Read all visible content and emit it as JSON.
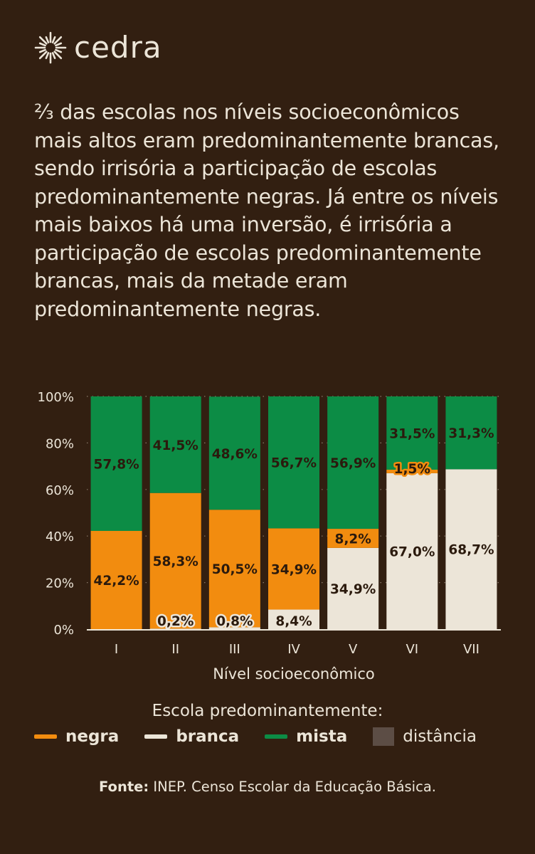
{
  "brand": {
    "name": "cedra",
    "icon": "sun-burst-icon"
  },
  "headline": "⅔ das escolas nos níveis socioeconômicos mais altos eram predominantemente brancas, sendo irrisória a participação de escolas predominantemente negras. Já entre os níveis mais baixos há uma inversão, é irrisória a participação de escolas predominantemente brancas, mais da metade eram predominantemente negras.",
  "chart_data": {
    "type": "bar",
    "stacked": true,
    "categories": [
      "I",
      "II",
      "III",
      "IV",
      "V",
      "VI",
      "VII"
    ],
    "xlabel": "Nível socioeconômico",
    "ylim": [
      0,
      100
    ],
    "yticks": [
      "0%",
      "20%",
      "40%",
      "60%",
      "80%",
      "100%"
    ],
    "series": [
      {
        "name": "branca",
        "values": [
          0.0,
          0.2,
          0.8,
          8.4,
          34.9,
          67.0,
          68.7
        ],
        "labels": [
          "",
          "0,2%",
          "0,8%",
          "8,4%",
          "34,9%",
          "67,0%",
          "68,7%"
        ]
      },
      {
        "name": "negra",
        "values": [
          42.2,
          58.3,
          50.5,
          34.9,
          8.2,
          1.5,
          0.0
        ],
        "labels": [
          "42,2%",
          "58,3%",
          "50,5%",
          "34,9%",
          "8,2%",
          "1,5%",
          ""
        ]
      },
      {
        "name": "mista",
        "values": [
          57.8,
          41.5,
          48.6,
          56.7,
          56.9,
          31.5,
          31.3
        ],
        "labels": [
          "57,8%",
          "41,5%",
          "48,6%",
          "56,7%",
          "56,9%",
          "31,5%",
          "31,3%"
        ]
      }
    ],
    "colors": {
      "negra": "#f28c0f",
      "branca": "#ece5d8",
      "mista": "#0c8c45",
      "distancia": "#5c4d45"
    },
    "grid": true
  },
  "legend": {
    "title": "Escola predominantemente:",
    "items": [
      {
        "label": "negra",
        "color": "#f28c0f",
        "style": "line",
        "bold": true
      },
      {
        "label": "branca",
        "color": "#ece5d8",
        "style": "line",
        "bold": true
      },
      {
        "label": "mista",
        "color": "#0c8c45",
        "style": "line",
        "bold": true
      },
      {
        "label": "distância",
        "color": "#5c4d45",
        "style": "box",
        "bold": false
      }
    ]
  },
  "source": {
    "prefix": "Fonte:",
    "text": " INEP. Censo Escolar da Educação Básica."
  }
}
